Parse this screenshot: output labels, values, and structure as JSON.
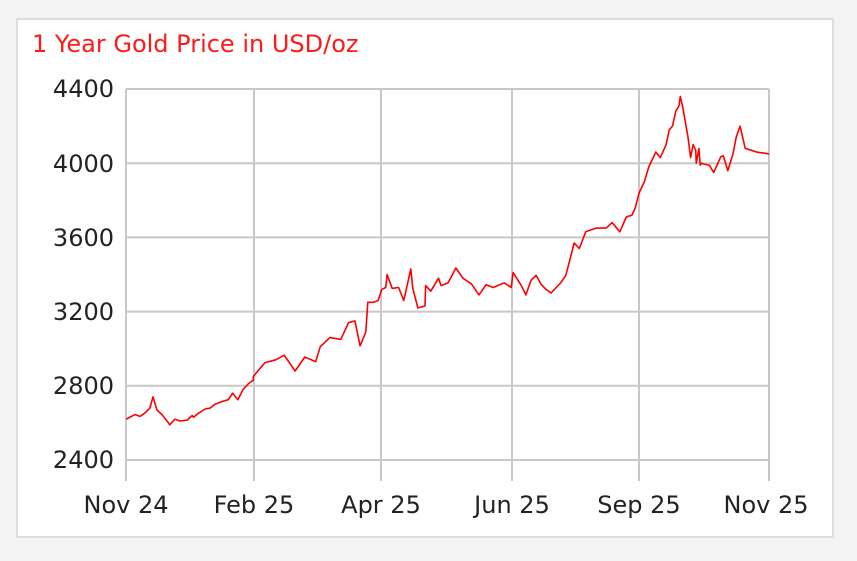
{
  "title": "1 Year Gold Price in USD/oz",
  "colors": {
    "line": "#ff0000",
    "title": "#ff1a1a",
    "grid": "#c8c8c8",
    "axis_text": "#222222",
    "background": "#f3f3f3",
    "card": "#ffffff"
  },
  "chart_data": {
    "type": "line",
    "title": "1 Year Gold Price in USD/oz",
    "xlabel": "",
    "ylabel": "",
    "ylim": [
      2400,
      4400
    ],
    "y_ticks": [
      2400,
      2800,
      3200,
      3600,
      4000,
      4400
    ],
    "x_ticks": [
      "Nov 24",
      "Feb 25",
      "Apr 25",
      "Jun 25",
      "Sep 25",
      "Nov 25"
    ],
    "grid": true,
    "legend": null,
    "series": [
      {
        "name": "Gold Price (USD/oz)",
        "color": "#ff0000",
        "x_fraction": [
          0.0,
          0.014,
          0.022,
          0.03,
          0.037,
          0.042,
          0.048,
          0.056,
          0.065,
          0.068,
          0.076,
          0.084,
          0.095,
          0.103,
          0.105,
          0.112,
          0.123,
          0.131,
          0.138,
          0.149,
          0.159,
          0.166,
          0.174,
          0.182,
          0.19,
          0.198,
          0.198,
          0.216,
          0.233,
          0.246,
          0.263,
          0.278,
          0.295,
          0.302,
          0.317,
          0.334,
          0.346,
          0.356,
          0.364,
          0.373,
          0.376,
          0.385,
          0.392,
          0.398,
          0.404,
          0.406,
          0.414,
          0.424,
          0.432,
          0.443,
          0.446,
          0.454,
          0.465,
          0.466,
          0.474,
          0.486,
          0.49,
          0.501,
          0.513,
          0.524,
          0.537,
          0.549,
          0.56,
          0.571,
          0.588,
          0.599,
          0.602,
          0.614,
          0.622,
          0.63,
          0.638,
          0.645,
          0.653,
          0.661,
          0.676,
          0.684,
          0.697,
          0.705,
          0.715,
          0.731,
          0.747,
          0.756,
          0.768,
          0.778,
          0.787,
          0.792,
          0.798,
          0.806,
          0.813,
          0.824,
          0.831,
          0.84,
          0.845,
          0.85,
          0.855,
          0.86,
          0.862,
          0.866,
          0.874,
          0.878,
          0.882,
          0.886,
          0.887,
          0.891,
          0.893,
          0.895,
          0.899,
          0.907,
          0.914,
          0.925,
          0.929,
          0.936,
          0.944,
          0.949,
          0.955,
          0.963,
          0.972,
          0.981,
          1.0
        ],
        "values": [
          2620,
          2645,
          2635,
          2655,
          2680,
          2740,
          2670,
          2645,
          2605,
          2590,
          2620,
          2610,
          2615,
          2640,
          2630,
          2650,
          2675,
          2680,
          2700,
          2715,
          2725,
          2760,
          2725,
          2780,
          2810,
          2830,
          2850,
          2925,
          2940,
          2965,
          2880,
          2955,
          2930,
          3010,
          3060,
          3050,
          3140,
          3150,
          3015,
          3090,
          3250,
          3250,
          3260,
          3320,
          3330,
          3400,
          3325,
          3330,
          3260,
          3430,
          3325,
          3220,
          3230,
          3340,
          3310,
          3380,
          3340,
          3355,
          3435,
          3380,
          3350,
          3290,
          3345,
          3330,
          3355,
          3330,
          3410,
          3345,
          3290,
          3370,
          3395,
          3350,
          3320,
          3300,
          3355,
          3395,
          3570,
          3540,
          3630,
          3650,
          3650,
          3680,
          3630,
          3710,
          3720,
          3760,
          3840,
          3900,
          3980,
          4060,
          4030,
          4100,
          4180,
          4200,
          4280,
          4310,
          4360,
          4300,
          4140,
          4030,
          4100,
          4070,
          4000,
          4080,
          3990,
          4000,
          3995,
          3990,
          3950,
          4035,
          4040,
          3960,
          4050,
          4140,
          4200,
          4080,
          4070,
          4060,
          4050
        ]
      }
    ]
  },
  "axis": {
    "y_labels": [
      "4400",
      "4000",
      "3600",
      "3200",
      "2800",
      "2400"
    ],
    "x_labels": [
      "Nov 24",
      "Feb 25",
      "Apr 25",
      "Jun 25",
      "Sep 25",
      "Nov 25"
    ]
  }
}
